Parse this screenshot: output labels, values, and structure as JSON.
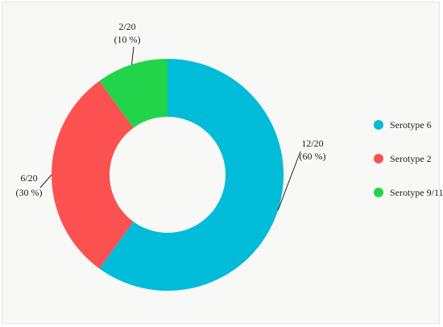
{
  "chart_data": {
    "type": "pie",
    "variant": "donut",
    "title": "",
    "slices": [
      {
        "name": "Serotype 6",
        "value": 12,
        "fraction_text": "12/20",
        "percent_text": "(60 %)",
        "color": "#00bcd8"
      },
      {
        "name": "Serotype 2",
        "value": 6,
        "fraction_text": "6/20",
        "percent_text": "(30 %)",
        "color": "#fc5151"
      },
      {
        "name": "Serotype 9/11",
        "value": 2,
        "fraction_text": "2/20",
        "percent_text": "(10 %)",
        "color": "#21d44a"
      }
    ],
    "total": 20,
    "legend_position": "right"
  }
}
